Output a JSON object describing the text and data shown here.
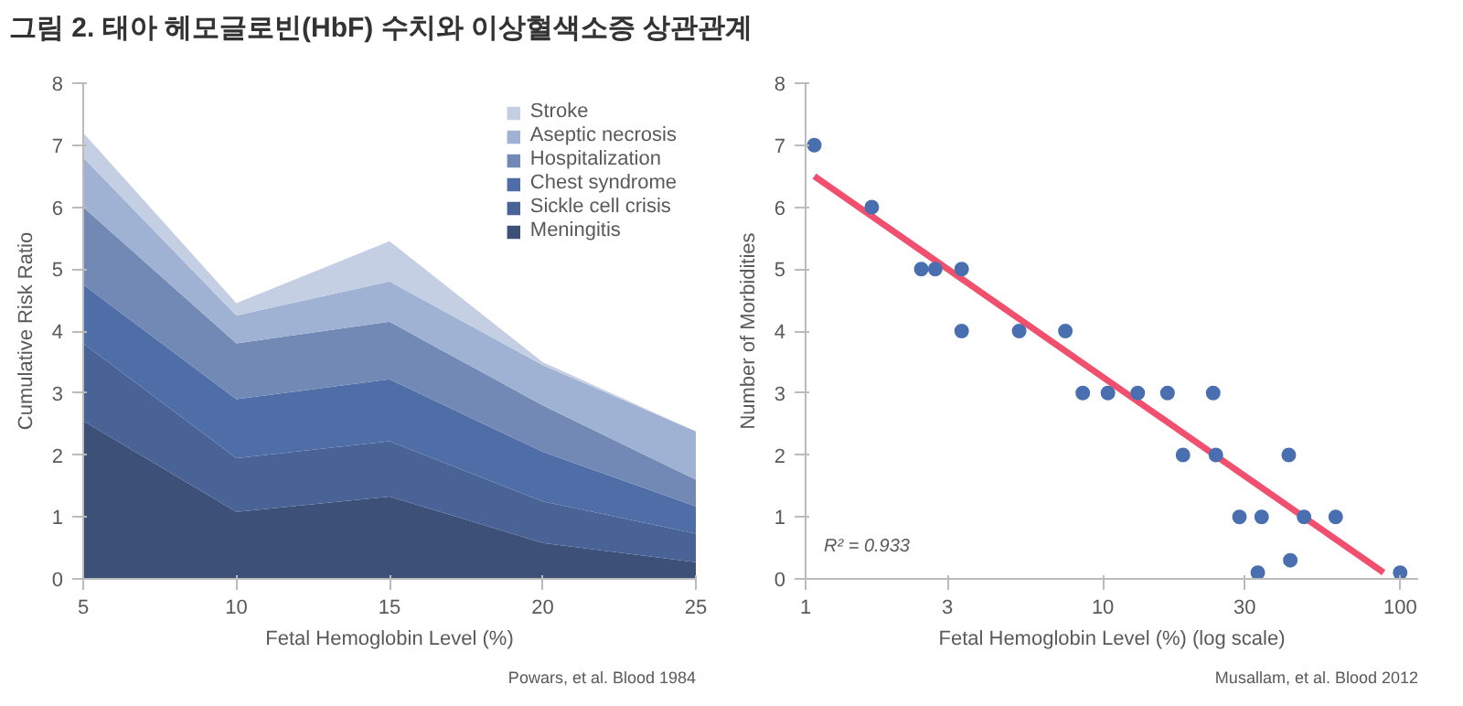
{
  "chart_data": [
    {
      "type": "area",
      "title": "그림 2. 태아 헤모글로빈(HbF) 수치와 이상혈색소증 상관관계",
      "xlabel": "Fetal Hemoglobin Level (%)",
      "ylabel": "Cumulative Risk Ratio",
      "stacked": true,
      "x": [
        5,
        10,
        15,
        20,
        25
      ],
      "xlim": [
        5,
        25
      ],
      "xticks": [
        5,
        10,
        15,
        20,
        25
      ],
      "ylim": [
        0,
        8
      ],
      "yticks": [
        0,
        1,
        2,
        3,
        4,
        5,
        6,
        7,
        8
      ],
      "grid": false,
      "legend": "top right",
      "annotations": [
        "Powars, et al. Blood 1984"
      ],
      "series": [
        {
          "name": "Meningitis",
          "color": "#3c5078",
          "values": [
            2.55,
            1.08,
            1.33,
            0.58,
            0.27
          ]
        },
        {
          "name": "Sickle cell crisis",
          "color": "#4a6396",
          "values": [
            1.25,
            0.87,
            0.89,
            0.67,
            0.46
          ]
        },
        {
          "name": "Chest syndrome",
          "color": "#4f6ea8",
          "values": [
            0.95,
            0.95,
            1.0,
            0.8,
            0.44
          ]
        },
        {
          "name": "Hospitalization",
          "color": "#7189b4",
          "values": [
            1.25,
            0.9,
            0.93,
            0.75,
            0.43
          ]
        },
        {
          "name": "Aseptic necrosis",
          "color": "#a0b2d3",
          "values": [
            0.8,
            0.45,
            0.65,
            0.65,
            0.78
          ]
        },
        {
          "name": "Stroke",
          "color": "#c4cfe4",
          "values": [
            0.4,
            0.2,
            0.65,
            0.05,
            0
          ]
        }
      ]
    },
    {
      "type": "scatter",
      "xlabel": "Fetal Hemoglobin Level (%) (log scale)",
      "ylabel": "Number of Morbidities",
      "log": "x",
      "xlim": [
        1,
        115
      ],
      "xticks": [
        1,
        3,
        10,
        30,
        100
      ],
      "ylim": [
        0,
        8
      ],
      "yticks": [
        0,
        1,
        2,
        3,
        4,
        5,
        6,
        7,
        8
      ],
      "grid": false,
      "legend": false,
      "annotations": [
        "R² = 0.933",
        "Musallam, et al. Blood 2012"
      ],
      "series": [
        {
          "type": "line",
          "color": "#f0506e",
          "x": [
            1.07,
            88
          ],
          "values": [
            6.5,
            0.1
          ]
        },
        {
          "color": "#4a6fb0",
          "marker": "circle",
          "x": [
            1.07,
            1.67,
            2.45,
            2.73,
            3.35,
            3.35,
            5.23,
            7.48,
            8.56,
            10.4,
            13.1,
            16.5,
            23.5,
            18.6,
            24.0,
            42.2,
            28.8,
            34.2,
            47.5,
            60.7,
            33.2,
            42.7,
            100
          ],
          "values": [
            7,
            6,
            5,
            5,
            5,
            4,
            4,
            4,
            3,
            3,
            3,
            3,
            3,
            2,
            2,
            2,
            1,
            1,
            1,
            1,
            0.1,
            0.3,
            0.1
          ]
        }
      ]
    }
  ]
}
